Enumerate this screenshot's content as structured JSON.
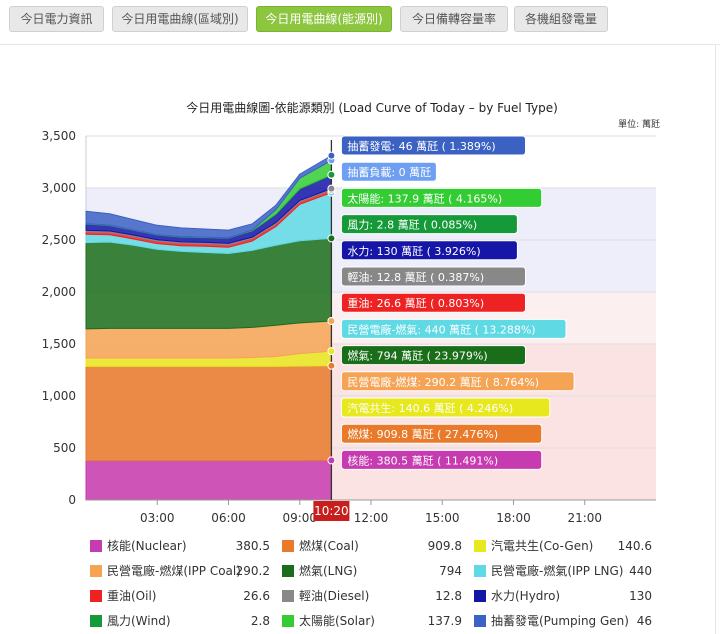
{
  "tabs": [
    {
      "label": "今日電力資訊",
      "active": false
    },
    {
      "label": "今日用電曲線(區域別)",
      "active": false
    },
    {
      "label": "今日用電曲線(能源別)",
      "active": true
    },
    {
      "label": "今日備轉容量率",
      "active": false
    },
    {
      "label": "各機組發電量",
      "active": false
    }
  ],
  "chart_data": {
    "type": "area",
    "title": "今日用電曲線圖-依能源類別 (Load Curve of Today – by Fuel Type)",
    "unit_label": "單位: 萬瓩",
    "ylim": [
      0,
      3500
    ],
    "yticks": [
      0,
      500,
      1000,
      1500,
      2000,
      2500,
      3000,
      3500
    ],
    "xticks": [
      "03:00",
      "06:00",
      "09:00",
      "12:00",
      "15:00",
      "18:00",
      "21:00"
    ],
    "current_time": "10:20",
    "zones": [
      {
        "from": 0,
        "to": 1500,
        "color": "#fbe3e3"
      },
      {
        "from": 1500,
        "to": 2000,
        "color": "#fcefef"
      },
      {
        "from": 2000,
        "to": 3000,
        "color": "#eeeefb"
      }
    ],
    "x_hours": [
      0,
      1,
      2,
      3,
      4,
      5,
      6,
      7,
      8,
      9,
      10.333
    ],
    "series": [
      {
        "key": "nuclear",
        "name": "核能(Nuclear)",
        "label": "核能",
        "value": "380.5",
        "pct": "11.491%",
        "color": "#c63bb0",
        "values": [
          380,
          380,
          380,
          380,
          380,
          380,
          380,
          380,
          380,
          380,
          380.5
        ]
      },
      {
        "key": "coal",
        "name": "燃煤(Coal)",
        "label": "燃煤",
        "value": "909.8",
        "pct": "27.476%",
        "color": "#e87a2a",
        "values": [
          905,
          905,
          905,
          905,
          905,
          905,
          905,
          905,
          905,
          908,
          909.8
        ]
      },
      {
        "key": "cogen",
        "name": "汽電共生(Co-Gen)",
        "label": "汽電共生",
        "value": "140.6",
        "pct": "4.246%",
        "color": "#e8e81f",
        "values": [
          80,
          80,
          80,
          80,
          80,
          80,
          80,
          85,
          95,
          120,
          140.6
        ]
      },
      {
        "key": "ipp_coal",
        "name": "民營電廠-燃煤(IPP Coal)",
        "label": "民營電廠-燃煤",
        "value": "290.2",
        "pct": "8.764%",
        "color": "#f5a455",
        "values": [
          280,
          285,
          285,
          285,
          285,
          285,
          285,
          290,
          300,
          295,
          290.2
        ]
      },
      {
        "key": "lng",
        "name": "燃氣(LNG)",
        "label": "燃氣",
        "value": "794",
        "pct": "23.979%",
        "color": "#1a6e1a",
        "values": [
          830,
          830,
          800,
          760,
          740,
          730,
          720,
          740,
          770,
          790,
          794
        ]
      },
      {
        "key": "ipp_lng",
        "name": "民營電廠-燃氣(IPP LNG)",
        "label": "民營電廠-燃氣",
        "value": "440",
        "pct": "13.288%",
        "color": "#5fd9e3",
        "values": [
          80,
          70,
          60,
          55,
          55,
          60,
          60,
          90,
          180,
          350,
          440
        ]
      },
      {
        "key": "oil",
        "name": "重油(Oil)",
        "label": "重油",
        "value": "26.6",
        "pct": "0.803%",
        "color": "#ee2222",
        "values": [
          25,
          25,
          25,
          25,
          25,
          25,
          25,
          26,
          26,
          26,
          26.6
        ]
      },
      {
        "key": "diesel",
        "name": "輕油(Diesel)",
        "label": "輕油",
        "value": "12.8",
        "pct": "0.387%",
        "color": "#888888",
        "values": [
          12,
          12,
          12,
          12,
          12,
          12,
          12,
          12,
          12,
          12,
          12.8
        ]
      },
      {
        "key": "hydro",
        "name": "水力(Hydro)",
        "label": "水力",
        "value": "130",
        "pct": "3.926%",
        "color": "#1515a8",
        "values": [
          60,
          50,
          45,
          45,
          45,
          45,
          50,
          60,
          80,
          110,
          130
        ]
      },
      {
        "key": "wind",
        "name": "風力(Wind)",
        "label": "風力",
        "value": "2.8",
        "pct": "0.085%",
        "color": "#159a3a",
        "values": [
          5,
          5,
          4,
          4,
          4,
          4,
          3,
          3,
          3,
          3,
          2.8
        ]
      },
      {
        "key": "solar",
        "name": "太陽能(Solar)",
        "label": "太陽能",
        "value": "137.9",
        "pct": "4.165%",
        "color": "#33cc33",
        "values": [
          0,
          0,
          0,
          0,
          0,
          0,
          0,
          5,
          40,
          100,
          137.9
        ]
      },
      {
        "key": "pump_load",
        "name": "",
        "label": "抽蓄負載",
        "value": "0",
        "pct": "",
        "color": "#6e9ff0",
        "values": [
          0,
          0,
          0,
          0,
          0,
          0,
          0,
          0,
          0,
          0,
          0
        ]
      },
      {
        "key": "pump_gen",
        "name": "抽蓄發電(Pumping Gen)",
        "label": "抽蓄發電",
        "value": "46",
        "pct": "1.389%",
        "color": "#3b62c2",
        "values": [
          120,
          110,
          100,
          90,
          85,
          80,
          75,
          60,
          45,
          40,
          46
        ]
      }
    ],
    "unit": "萬瓩"
  }
}
